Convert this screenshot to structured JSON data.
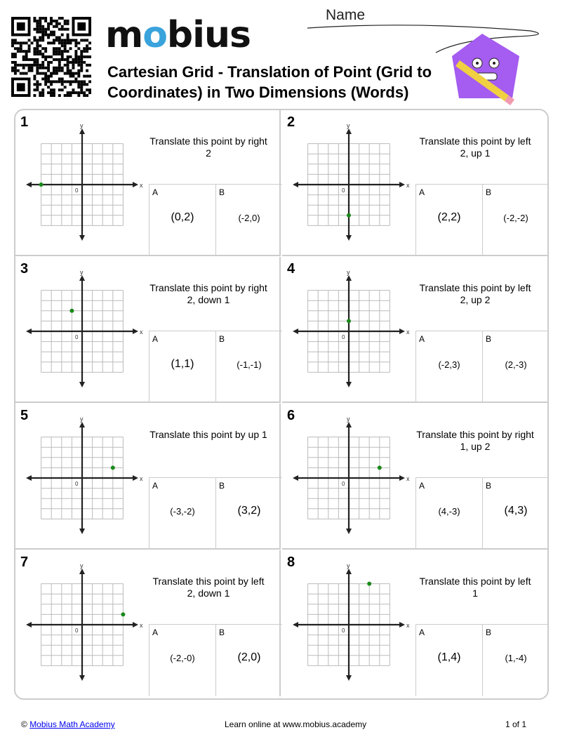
{
  "header": {
    "logo_text": "mobius",
    "title": "Cartesian Grid - Translation of Point (Grid to Coordinates) in Two Dimensions (Words)",
    "name_label": "Name"
  },
  "colors": {
    "point": "#1a8a1a",
    "logo_accent": "#3aa3dc",
    "mascot": "#a55cf0"
  },
  "grid": {
    "min": -4,
    "max": 4,
    "origin_label": "0",
    "x_label": "x",
    "y_label": "y"
  },
  "problems": [
    {
      "number": "1",
      "point": [
        -4,
        0
      ],
      "prompt": "Translate this point by right 2",
      "a_label": "A",
      "a": "(0,2)",
      "b_label": "B",
      "b": "(-2,0)"
    },
    {
      "number": "2",
      "point": [
        0,
        -3
      ],
      "prompt": "Translate this point by left 2, up 1",
      "a_label": "A",
      "a": "(2,2)",
      "b_label": "B",
      "b": "(-2,-2)"
    },
    {
      "number": "3",
      "point": [
        -1,
        2
      ],
      "prompt": "Translate this point by right 2, down 1",
      "a_label": "A",
      "a": "(1,1)",
      "b_label": "B",
      "b": "(-1,-1)"
    },
    {
      "number": "4",
      "point": [
        0,
        1
      ],
      "prompt": "Translate this point by left 2, up 2",
      "a_label": "A",
      "a": "(-2,3)",
      "b_label": "B",
      "b": "(2,-3)"
    },
    {
      "number": "5",
      "point": [
        3,
        1
      ],
      "prompt": "Translate this point by up 1",
      "a_label": "A",
      "a": "(-3,-2)",
      "b_label": "B",
      "b": "(3,2)"
    },
    {
      "number": "6",
      "point": [
        3,
        1
      ],
      "prompt": "Translate this point by right 1, up 2",
      "a_label": "A",
      "a": "(4,-3)",
      "b_label": "B",
      "b": "(4,3)"
    },
    {
      "number": "7",
      "point": [
        4,
        1
      ],
      "prompt": "Translate this point by left 2, down 1",
      "a_label": "A",
      "a": "(-2,-0)",
      "b_label": "B",
      "b": "(2,0)"
    },
    {
      "number": "8",
      "point": [
        2,
        4
      ],
      "prompt": "Translate this point by left 1",
      "a_label": "A",
      "a": "(1,4)",
      "b_label": "B",
      "b": "(1,-4)"
    }
  ],
  "footer": {
    "copyright": "©",
    "link": "Mobius Math Academy",
    "center": "Learn online at www.mobius.academy",
    "page": "1 of 1"
  }
}
